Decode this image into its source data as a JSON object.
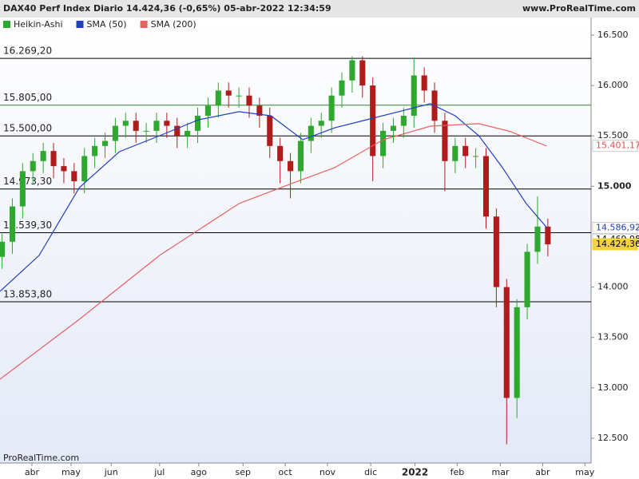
{
  "chart_data": {
    "type": "candlestick",
    "title": "DAX40 Perf Index Diario 14.424,36 (-0,65%) 05-abr-2022 12:34:59",
    "source": "www.ProRealTime.com",
    "footer": "ProRealTime.com",
    "candles": {
      "name": "Heikin-Ashi",
      "up_color": "#2ea82e",
      "down_color": "#b01c1c",
      "open": [
        14300,
        14450,
        14800,
        15150,
        15250,
        15350,
        15200,
        15150,
        15050,
        15300,
        15400,
        15450,
        15600,
        15650,
        15550,
        15550,
        15650,
        15600,
        15500,
        15550,
        15700,
        15800,
        15950,
        15900,
        15900,
        15800,
        15700,
        15400,
        15250,
        15150,
        15450,
        15600,
        15650,
        15900,
        16050,
        16250,
        16000,
        15300,
        15550,
        15600,
        15700,
        16100,
        15950,
        15650,
        15250,
        15400,
        15300,
        15300,
        14700,
        14000,
        12900,
        13800,
        14350,
        14600
      ],
      "high": [
        14530,
        14880,
        15230,
        15330,
        15430,
        15430,
        15280,
        15230,
        15380,
        15480,
        15530,
        15680,
        15730,
        15730,
        15630,
        15730,
        15730,
        15680,
        15630,
        15780,
        15880,
        16030,
        16030,
        15980,
        15980,
        15880,
        15780,
        15480,
        15330,
        15530,
        15680,
        15730,
        15980,
        16130,
        16290,
        16290,
        16080,
        15630,
        15680,
        15780,
        16280,
        16180,
        16030,
        15730,
        15480,
        15480,
        15380,
        15380,
        14780,
        14080,
        13880,
        14430,
        14900,
        14680
      ],
      "low": [
        14180,
        14330,
        14680,
        15030,
        15130,
        15080,
        15030,
        14930,
        14930,
        15180,
        15280,
        15330,
        15480,
        15430,
        15430,
        15430,
        15480,
        15380,
        15380,
        15430,
        15580,
        15680,
        15780,
        15780,
        15680,
        15580,
        15280,
        15030,
        14880,
        15030,
        15330,
        15480,
        15530,
        15780,
        15930,
        15880,
        15050,
        15180,
        15430,
        15480,
        15580,
        15830,
        15530,
        14950,
        15130,
        15180,
        15180,
        14580,
        13800,
        12440,
        12700,
        13680,
        14230,
        14304
      ],
      "close": [
        14450,
        14800,
        15150,
        15250,
        15350,
        15200,
        15150,
        15050,
        15300,
        15400,
        15450,
        15600,
        15650,
        15550,
        15550,
        15650,
        15600,
        15500,
        15550,
        15700,
        15800,
        15950,
        15900,
        15900,
        15800,
        15700,
        15400,
        15250,
        15150,
        15450,
        15600,
        15650,
        15900,
        16050,
        16250,
        16000,
        15300,
        15550,
        15600,
        15700,
        16100,
        15950,
        15650,
        15250,
        15400,
        15300,
        15300,
        14700,
        14000,
        12900,
        13800,
        14350,
        14600,
        14424
      ]
    },
    "series": [
      {
        "name": "SMA (50)",
        "color": "#2040c0",
        "x": [
          -0.2,
          3.6,
          7.5,
          11.4,
          15.3,
          19.1,
          23.0,
          26.1,
          29.2,
          32.3,
          35.4,
          38.5,
          41.6,
          44.0,
          46.3,
          48.6,
          50.9,
          52.9
        ],
        "values": [
          13958,
          14314,
          14987,
          15343,
          15502,
          15660,
          15740,
          15700,
          15462,
          15580,
          15660,
          15740,
          15819,
          15700,
          15502,
          15185,
          14828,
          14590
        ]
      },
      {
        "name": "SMA (200)",
        "color": "#e86060",
        "x": [
          -0.2,
          7.5,
          15.3,
          23.0,
          27.7,
          32.3,
          37.0,
          41.6,
          46.3,
          49.4,
          52.9
        ],
        "values": [
          13086,
          13680,
          14314,
          14828,
          15011,
          15185,
          15462,
          15597,
          15621,
          15542,
          15399
        ]
      }
    ],
    "levels": [
      {
        "value": 16269.2,
        "label": "16.269,20",
        "color": "#000000"
      },
      {
        "value": 15805,
        "label": "15.805,00",
        "color": "#2a8a2a"
      },
      {
        "value": 15500,
        "label": "15.500,00",
        "color": "#000000"
      },
      {
        "value": 14973.3,
        "label": "14.973,30",
        "color": "#000000"
      },
      {
        "value": 14539.3,
        "label": "14.539,30",
        "color": "#000000"
      },
      {
        "value": 13853.8,
        "label": "13.853,80",
        "color": "#000000"
      }
    ],
    "price_tags": [
      {
        "value": 15401.17,
        "label": "15.401,17",
        "color": "#e05050",
        "background": "#ffffff"
      },
      {
        "value": 14586.92,
        "label": "14.586,92",
        "color": "#2040c0",
        "background": "#ffffff"
      },
      {
        "value": 14469.98,
        "label": "14.469,98",
        "color": "#000000",
        "background": "#ffffff"
      },
      {
        "value": 14424.36,
        "label": "14.424,36",
        "color": "#000000",
        "background": "#f2d437"
      }
    ],
    "ylim": [
      12254,
      16674
    ],
    "yticks": [
      {
        "value": 16500,
        "label": "16.500"
      },
      {
        "value": 16000,
        "label": "16.000"
      },
      {
        "value": 15500,
        "label": "15.500"
      },
      {
        "value": 15000,
        "label": "15.000"
      },
      {
        "value": 14000,
        "label": "14.000"
      },
      {
        "value": 13500,
        "label": "13.500"
      },
      {
        "value": 13000,
        "label": "13.000"
      },
      {
        "value": 12500,
        "label": "12.500"
      }
    ],
    "xlim": [
      -0.2,
      57.2
    ],
    "xticks": [
      {
        "value": 2.9,
        "label": "abr"
      },
      {
        "value": 6.7,
        "label": "may"
      },
      {
        "value": 10.6,
        "label": "jun"
      },
      {
        "value": 15.3,
        "label": "jul"
      },
      {
        "value": 19.1,
        "label": "ago"
      },
      {
        "value": 23.4,
        "label": "sep"
      },
      {
        "value": 27.5,
        "label": "oct"
      },
      {
        "value": 31.6,
        "label": "nov"
      },
      {
        "value": 35.8,
        "label": "dic"
      },
      {
        "value": 40.1,
        "label": "2022"
      },
      {
        "value": 44.2,
        "label": "feb"
      },
      {
        "value": 48.4,
        "label": "mar"
      },
      {
        "value": 52.5,
        "label": "abr"
      },
      {
        "value": 56.6,
        "label": "may"
      }
    ]
  }
}
